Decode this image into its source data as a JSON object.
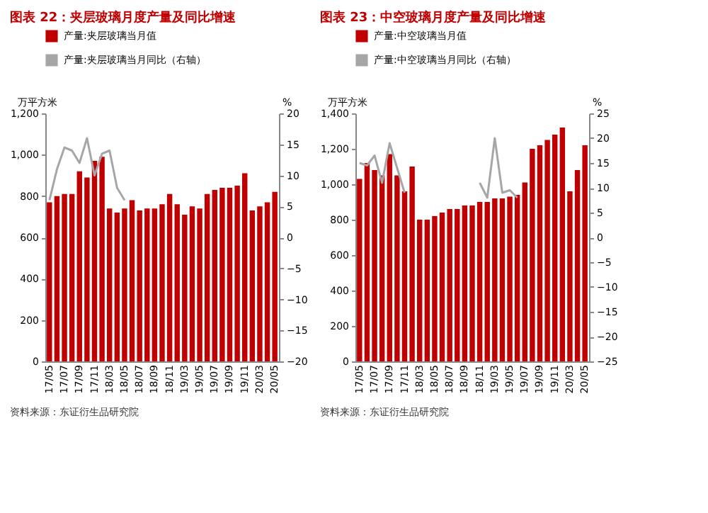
{
  "chart_data": [
    {
      "type": "bar",
      "title": "图表 22：夹层玻璃月度产量及同比增速",
      "ylabel": "万平方米",
      "y2label": "%",
      "legend": "top",
      "annotations": [
        "资料来源：东证衍生品研究院"
      ],
      "categories": [
        "17/05",
        null,
        "17/07",
        null,
        "17/09",
        null,
        "17/11",
        null,
        "18/03",
        null,
        "18/05",
        null,
        "18/07",
        null,
        "18/09",
        null,
        "18/11",
        null,
        "19/03",
        null,
        "19/05",
        null,
        "19/07",
        null,
        "19/09",
        null,
        "19/11",
        null,
        "20/03",
        null,
        "20/05"
      ],
      "series": [
        {
          "name": "产量:夹层玻璃当月值",
          "color": "#c00000",
          "values": [
            770,
            800,
            810,
            810,
            920,
            890,
            970,
            990,
            740,
            720,
            740,
            780,
            730,
            740,
            740,
            760,
            810,
            760,
            710,
            750,
            740,
            810,
            830,
            840,
            840,
            850,
            910,
            730,
            750,
            770,
            820
          ]
        },
        {
          "name": "产量:夹层玻璃当月同比（右轴）",
          "type": "line",
          "axis": "y2",
          "color": "#a6a6a6",
          "values": [
            6,
            11,
            14.5,
            14,
            12,
            16,
            10,
            13.5,
            14,
            8,
            6,
            null,
            null,
            null,
            null,
            null,
            null,
            null,
            null,
            null,
            null,
            null,
            null,
            null,
            null,
            null,
            null,
            null,
            null,
            null,
            null
          ]
        }
      ],
      "ylim": [
        0,
        1200
      ],
      "yticks": [
        0,
        200,
        400,
        600,
        800,
        {
          "value": 1000,
          "label": "1,000"
        },
        {
          "value": 1200,
          "label": "1,200"
        }
      ],
      "y2lim": [
        -20,
        20
      ],
      "y2ticks": [
        -20,
        -15,
        -10,
        -5,
        0,
        5,
        10,
        15,
        20
      ]
    },
    {
      "type": "bar",
      "title": "图表 23：中空玻璃月度产量及同比增速",
      "ylabel": "万平方米",
      "y2label": "%",
      "legend": "top",
      "annotations": [
        "资料来源：东证衍生品研究院"
      ],
      "categories": [
        "17/05",
        null,
        "17/07",
        null,
        "17/09",
        null,
        "17/11",
        null,
        "18/03",
        null,
        "18/05",
        null,
        "18/07",
        null,
        "18/09",
        null,
        "18/11",
        null,
        "19/03",
        null,
        "19/05",
        null,
        "19/07",
        null,
        "19/09",
        null,
        "19/11",
        null,
        "20/03",
        null,
        "20/05"
      ],
      "series": [
        {
          "name": "产量:中空玻璃当月值",
          "color": "#c00000",
          "values": [
            1030,
            1120,
            1080,
            1050,
            1170,
            1050,
            960,
            1100,
            800,
            800,
            820,
            840,
            860,
            860,
            880,
            880,
            900,
            900,
            920,
            920,
            930,
            940,
            1010,
            1200,
            1220,
            1250,
            1280,
            1320,
            960,
            1080,
            1220
          ]
        },
        {
          "name": "产量:中空玻璃当月同比（右轴）",
          "type": "line",
          "axis": "y2",
          "color": "#a6a6a6",
          "values": [
            15,
            14.5,
            16.5,
            11,
            19,
            14,
            9,
            null,
            null,
            null,
            null,
            null,
            null,
            null,
            null,
            null,
            11,
            8,
            20,
            9,
            9.5,
            8,
            null,
            null,
            null,
            null,
            null,
            null,
            null,
            null,
            null
          ]
        }
      ],
      "ylim": [
        0,
        1400
      ],
      "yticks": [
        0,
        200,
        400,
        600,
        800,
        {
          "value": 1000,
          "label": "1,000"
        },
        {
          "value": 1200,
          "label": "1,200"
        },
        {
          "value": 1400,
          "label": "1,400"
        }
      ],
      "y2lim": [
        -25,
        25
      ],
      "y2ticks": [
        -25,
        -20,
        -15,
        -10,
        -5,
        0,
        5,
        10,
        15,
        20,
        25
      ]
    }
  ]
}
